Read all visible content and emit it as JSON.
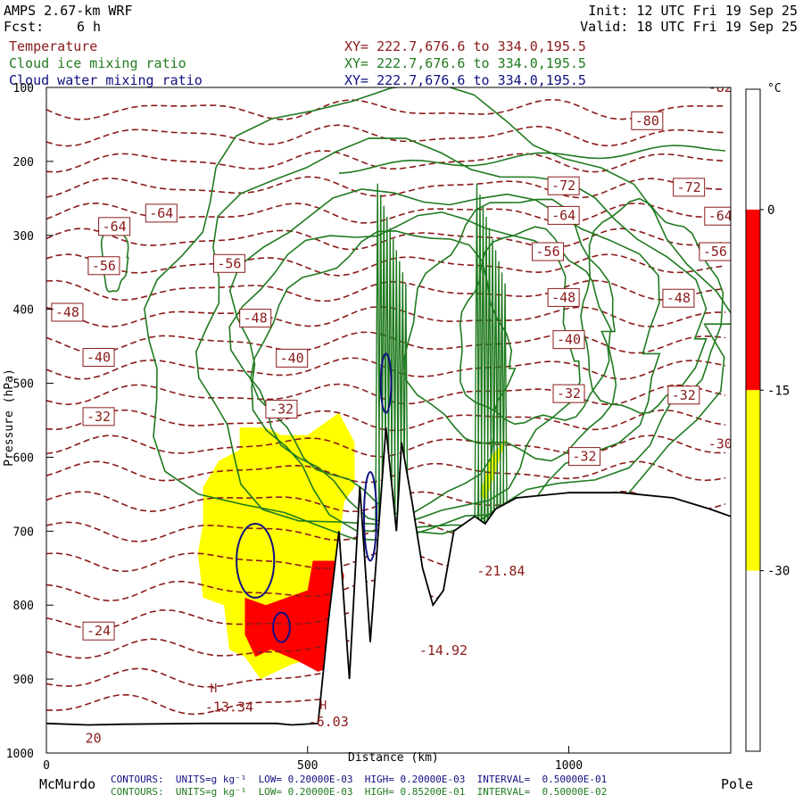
{
  "header": {
    "title": "AMPS 2.67-km WRF",
    "fcst_label": "Fcst:",
    "fcst_value": "6 h",
    "init": "Init: 12 UTC Fri 19 Sep 25",
    "valid": "Valid: 18 UTC Fri 19 Sep 25"
  },
  "legend": [
    {
      "name": "Temperature",
      "xy": "XY= 222.7,676.6 to 334.0,195.5",
      "color": "#8b1a1a"
    },
    {
      "name": "Cloud ice mixing ratio",
      "xy": "XY= 222.7,676.6 to 334.0,195.5",
      "color": "#1f7a1f"
    },
    {
      "name": "Cloud water mixing ratio",
      "xy": "XY= 222.7,676.6 to 334.0,195.5",
      "color": "#101080"
    }
  ],
  "footer": {
    "left_label": "McMurdo",
    "right_label": "Pole",
    "xlabel": "Distance (km)",
    "line1": "CONTOURS:  UNITS=g kg⁻¹  LOW= 0.20000E-03  HIGH= 0.20000E-03  INTERVAL=  0.50000E-01",
    "line2": "CONTOURS:  UNITS=g kg⁻¹  LOW= 0.20000E-03  HIGH= 0.85200E-01  INTERVAL=  0.50000E-02"
  },
  "colorbar": {
    "unit": "°C",
    "ticks": [
      "0",
      "-15",
      "-30"
    ],
    "segments": [
      {
        "from": 0,
        "to": 10,
        "color": "#ffffff"
      },
      {
        "from": -15,
        "to": 0,
        "color": "#ff0000"
      },
      {
        "from": -30,
        "to": -15,
        "color": "#ffff00"
      },
      {
        "from": -45,
        "to": -30,
        "color": "#ffffff"
      }
    ],
    "range": [
      -45,
      10
    ]
  },
  "chart_data": {
    "type": "cross-section",
    "title": "AMPS 2.67-km WRF",
    "xlabel": "Distance (km)",
    "ylabel": "Pressure (hPa)",
    "xlim": [
      0,
      1310
    ],
    "ylim": [
      1000,
      100
    ],
    "x_ticks": [
      0,
      500,
      1000
    ],
    "y_ticks": [
      100,
      200,
      300,
      400,
      500,
      600,
      700,
      800,
      900,
      1000
    ],
    "terrain": [
      [
        0,
        960
      ],
      [
        80,
        962
      ],
      [
        150,
        961
      ],
      [
        300,
        960
      ],
      [
        440,
        960
      ],
      [
        470,
        962
      ],
      [
        520,
        960
      ],
      [
        540,
        820
      ],
      [
        560,
        700
      ],
      [
        580,
        900
      ],
      [
        600,
        640
      ],
      [
        620,
        850
      ],
      [
        650,
        560
      ],
      [
        670,
        700
      ],
      [
        680,
        580
      ],
      [
        700,
        660
      ],
      [
        720,
        750
      ],
      [
        740,
        800
      ],
      [
        760,
        780
      ],
      [
        780,
        700
      ],
      [
        800,
        690
      ],
      [
        820,
        680
      ],
      [
        840,
        690
      ],
      [
        860,
        670
      ],
      [
        900,
        655
      ],
      [
        1000,
        648
      ],
      [
        1100,
        648
      ],
      [
        1200,
        655
      ],
      [
        1270,
        670
      ],
      [
        1310,
        680
      ]
    ],
    "temperature_labels": [
      {
        "x": 1150,
        "p": 145,
        "text": "-80"
      },
      {
        "x": 1290,
        "p": 100,
        "text": "-82"
      },
      {
        "x": 990,
        "p": 233,
        "text": "-72"
      },
      {
        "x": 1230,
        "p": 235,
        "text": "-72"
      },
      {
        "x": 220,
        "p": 270,
        "text": "-64"
      },
      {
        "x": 130,
        "p": 288,
        "text": "-64"
      },
      {
        "x": 990,
        "p": 273,
        "text": "-64"
      },
      {
        "x": 1290,
        "p": 274,
        "text": "-64"
      },
      {
        "x": 110,
        "p": 341,
        "text": "-56"
      },
      {
        "x": 960,
        "p": 322,
        "text": "-56"
      },
      {
        "x": 1280,
        "p": 322,
        "text": "-56"
      },
      {
        "x": 350,
        "p": 338,
        "text": "-56"
      },
      {
        "x": 40,
        "p": 404,
        "text": "-48"
      },
      {
        "x": 400,
        "p": 412,
        "text": "-48"
      },
      {
        "x": 990,
        "p": 384,
        "text": "-48"
      },
      {
        "x": 1210,
        "p": 385,
        "text": "-48"
      },
      {
        "x": 100,
        "p": 465,
        "text": "-40"
      },
      {
        "x": 470,
        "p": 466,
        "text": "-40"
      },
      {
        "x": 1000,
        "p": 441,
        "text": "-40"
      },
      {
        "x": 100,
        "p": 545,
        "text": "-32"
      },
      {
        "x": 450,
        "p": 535,
        "text": "-32"
      },
      {
        "x": 1000,
        "p": 514,
        "text": "-32"
      },
      {
        "x": 1220,
        "p": 516,
        "text": "-32"
      },
      {
        "x": 1030,
        "p": 599,
        "text": "-32"
      },
      {
        "x": 1290,
        "p": 582,
        "text": "-30"
      },
      {
        "x": 100,
        "p": 835,
        "text": "-24"
      },
      {
        "x": 870,
        "p": 754,
        "text": "-21.84"
      },
      {
        "x": 760,
        "p": 861,
        "text": "-14.92"
      },
      {
        "x": 350,
        "p": 938,
        "text": "-13.34"
      },
      {
        "x": 540,
        "p": 958,
        "text": "-6.03"
      },
      {
        "x": 90,
        "p": 980,
        "text": "20"
      }
    ],
    "high_markers": [
      {
        "x": 320,
        "p": 912,
        "text": "H"
      },
      {
        "x": 530,
        "p": 935,
        "text": "H"
      }
    ],
    "shaded_regions": [
      {
        "name": "-15 to -30",
        "color": "#ffff00",
        "points": [
          [
            300,
            640
          ],
          [
            330,
            605
          ],
          [
            370,
            590
          ],
          [
            370,
            560
          ],
          [
            420,
            560
          ],
          [
            450,
            570
          ],
          [
            500,
            570
          ],
          [
            560,
            540
          ],
          [
            590,
            580
          ],
          [
            590,
            640
          ],
          [
            570,
            660
          ],
          [
            560,
            720
          ],
          [
            560,
            860
          ],
          [
            520,
            870
          ],
          [
            470,
            880
          ],
          [
            410,
            900
          ],
          [
            380,
            870
          ],
          [
            350,
            860
          ],
          [
            340,
            800
          ],
          [
            300,
            790
          ],
          [
            290,
            730
          ],
          [
            300,
            690
          ]
        ]
      },
      {
        "name": "-15 to -30 (right)",
        "color": "#ffff00",
        "points": [
          [
            830,
            650
          ],
          [
            850,
            600
          ],
          [
            880,
            575
          ],
          [
            860,
            620
          ],
          [
            840,
            660
          ]
        ]
      },
      {
        "name": "0 to -15",
        "color": "#ff0000",
        "points": [
          [
            380,
            790
          ],
          [
            420,
            800
          ],
          [
            460,
            790
          ],
          [
            500,
            780
          ],
          [
            510,
            740
          ],
          [
            560,
            740
          ],
          [
            570,
            760
          ],
          [
            560,
            800
          ],
          [
            560,
            840
          ],
          [
            560,
            880
          ],
          [
            520,
            890
          ],
          [
            480,
            875
          ],
          [
            430,
            860
          ],
          [
            400,
            870
          ],
          [
            380,
            840
          ]
        ]
      }
    ]
  }
}
